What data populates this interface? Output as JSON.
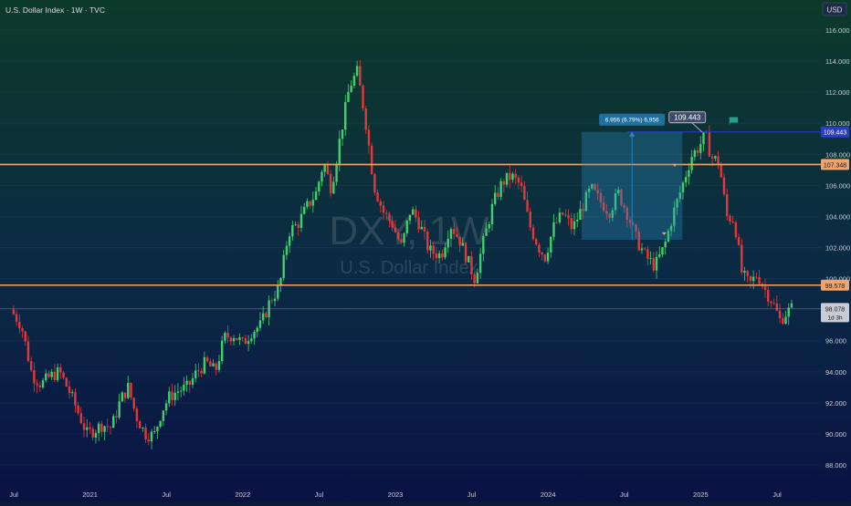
{
  "chart_data": {
    "type": "candlestick",
    "title": "U.S. Dollar Index · 1W · TVC",
    "watermark_symbol": "DXY, 1W",
    "watermark_name": "U.S. Dollar Index",
    "currency": "USD",
    "ylim": [
      87,
      117.5
    ],
    "y_ticks": [
      88,
      90,
      92,
      94,
      96,
      98,
      100,
      102,
      104,
      106,
      108,
      110,
      112,
      114,
      116
    ],
    "y_tick_labels": [
      "88.000",
      "90.000",
      "92.000",
      "94.000",
      "96.000",
      "98.000",
      "100.000",
      "102.000",
      "104.000",
      "106.000",
      "108.000",
      "110.000",
      "112.000",
      "114.000",
      "116.000"
    ],
    "x_ticks": [
      {
        "t": 2020.5,
        "label": "Jul"
      },
      {
        "t": 2021.0,
        "label": "2021"
      },
      {
        "t": 2021.5,
        "label": "Jul"
      },
      {
        "t": 2022.0,
        "label": "2022"
      },
      {
        "t": 2022.5,
        "label": "Jul"
      },
      {
        "t": 2023.0,
        "label": "2023"
      },
      {
        "t": 2023.5,
        "label": "Jul"
      },
      {
        "t": 2024.0,
        "label": "2024"
      },
      {
        "t": 2024.5,
        "label": "Jul"
      },
      {
        "t": 2025.0,
        "label": "2025"
      },
      {
        "t": 2025.5,
        "label": "Jul"
      }
    ],
    "price_path": [
      [
        2020.48,
        98.0
      ],
      [
        2020.55,
        97.0
      ],
      [
        2020.62,
        93.8
      ],
      [
        2020.68,
        93.2
      ],
      [
        2020.74,
        93.7
      ],
      [
        2020.8,
        94.0
      ],
      [
        2020.87,
        92.6
      ],
      [
        2020.93,
        91.2
      ],
      [
        2020.98,
        90.0
      ],
      [
        2021.02,
        90.2
      ],
      [
        2021.08,
        90.6
      ],
      [
        2021.14,
        90.4
      ],
      [
        2021.2,
        92.2
      ],
      [
        2021.25,
        93.0
      ],
      [
        2021.3,
        91.2
      ],
      [
        2021.36,
        90.0
      ],
      [
        2021.42,
        89.9
      ],
      [
        2021.47,
        91.5
      ],
      [
        2021.52,
        92.4
      ],
      [
        2021.58,
        92.8
      ],
      [
        2021.64,
        93.0
      ],
      [
        2021.7,
        94.0
      ],
      [
        2021.76,
        94.6
      ],
      [
        2021.82,
        94.0
      ],
      [
        2021.88,
        96.2
      ],
      [
        2021.94,
        96.4
      ],
      [
        2022.0,
        95.8
      ],
      [
        2022.06,
        96.6
      ],
      [
        2022.12,
        97.0
      ],
      [
        2022.18,
        98.6
      ],
      [
        2022.24,
        99.4
      ],
      [
        2022.3,
        103.0
      ],
      [
        2022.36,
        103.5
      ],
      [
        2022.42,
        104.6
      ],
      [
        2022.48,
        105.5
      ],
      [
        2022.53,
        107.5
      ],
      [
        2022.58,
        105.8
      ],
      [
        2022.64,
        109.2
      ],
      [
        2022.7,
        112.4
      ],
      [
        2022.75,
        113.3
      ],
      [
        2022.8,
        110.5
      ],
      [
        2022.86,
        106.0
      ],
      [
        2022.92,
        104.3
      ],
      [
        2022.98,
        103.5
      ],
      [
        2023.04,
        102.0
      ],
      [
        2023.1,
        104.5
      ],
      [
        2023.16,
        103.5
      ],
      [
        2023.22,
        101.8
      ],
      [
        2023.3,
        101.5
      ],
      [
        2023.36,
        103.5
      ],
      [
        2023.42,
        102.5
      ],
      [
        2023.48,
        101.0
      ],
      [
        2023.52,
        100.0
      ],
      [
        2023.58,
        102.5
      ],
      [
        2023.64,
        104.8
      ],
      [
        2023.7,
        106.2
      ],
      [
        2023.76,
        106.6
      ],
      [
        2023.82,
        106.0
      ],
      [
        2023.88,
        103.4
      ],
      [
        2023.94,
        102.0
      ],
      [
        2023.98,
        101.4
      ],
      [
        2024.04,
        103.4
      ],
      [
        2024.1,
        104.2
      ],
      [
        2024.16,
        103.2
      ],
      [
        2024.22,
        104.5
      ],
      [
        2024.28,
        105.8
      ],
      [
        2024.34,
        105.0
      ],
      [
        2024.4,
        104.3
      ],
      [
        2024.46,
        105.5
      ],
      [
        2024.52,
        104.2
      ],
      [
        2024.58,
        102.5
      ],
      [
        2024.64,
        101.4
      ],
      [
        2024.7,
        100.8
      ],
      [
        2024.76,
        102.0
      ],
      [
        2024.82,
        104.2
      ],
      [
        2024.88,
        106.0
      ],
      [
        2024.94,
        107.9
      ],
      [
        2024.99,
        108.5
      ],
      [
        2025.03,
        109.3
      ],
      [
        2025.07,
        107.8
      ],
      [
        2025.12,
        107.5
      ],
      [
        2025.17,
        104.0
      ],
      [
        2025.22,
        103.8
      ],
      [
        2025.27,
        100.3
      ],
      [
        2025.32,
        99.6
      ],
      [
        2025.37,
        100.3
      ],
      [
        2025.42,
        99.3
      ],
      [
        2025.47,
        98.5
      ],
      [
        2025.52,
        97.3
      ],
      [
        2025.56,
        97.8
      ],
      [
        2025.6,
        98.1
      ]
    ],
    "horizontal_lines": [
      {
        "value": 107.348,
        "label": "107.348",
        "color": "#f0a36b"
      },
      {
        "value": 99.578,
        "label": "99.578",
        "color": "#f0a36b"
      },
      {
        "value": 109.443,
        "label": "109.443",
        "color": "#2a3cc8"
      }
    ],
    "current_price": {
      "value": 98.078,
      "label": "98.078",
      "countdown": "1d 3h",
      "color": "#c9ccd6"
    },
    "measure_box": {
      "t_start": 2024.22,
      "t_end": 2024.88,
      "y_low": 102.5,
      "y_high": 109.443,
      "label": "6.956 (6.79%) 6,956",
      "color": "#2d8fc4"
    },
    "callout_label": "109.443",
    "green_up": "#3ed16a",
    "red_down": "#e43838"
  }
}
